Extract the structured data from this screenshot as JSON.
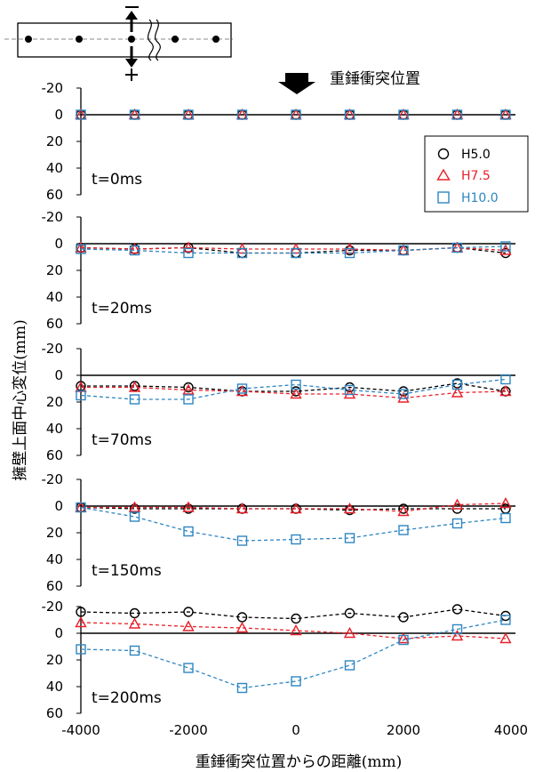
{
  "chart_data": {
    "type": "line",
    "ylabel": "擁壁上面中心変位(mm)",
    "xlabel": "重錘衝突位置からの距離(mm)",
    "annotation": "重錘衝突位置",
    "x": [
      -4000,
      -3000,
      -2000,
      -1000,
      0,
      1000,
      2000,
      3000,
      3900
    ],
    "xlim": [
      -4000,
      4000
    ],
    "x_ticks": [
      "-4000",
      "-2000",
      "0",
      "2000",
      "4000"
    ],
    "ylim": [
      -20,
      60
    ],
    "y_inverted": true,
    "y_ticks": [
      "-20",
      "0",
      "20",
      "40",
      "60"
    ],
    "legend": {
      "placement": "top-right of first panel",
      "entries": [
        {
          "marker": "circle",
          "label": "H5.0",
          "color": "#000000"
        },
        {
          "marker": "triangle",
          "label": "H7.5",
          "color": "#e8202a"
        },
        {
          "marker": "square",
          "label": "H10.0",
          "color": "#2e86c1"
        }
      ]
    },
    "panels": [
      {
        "label": "t=0ms",
        "series": [
          {
            "name": "H5.0",
            "values": [
              0,
              0,
              0,
              0,
              0,
              0,
              0,
              0,
              0
            ]
          },
          {
            "name": "H7.5",
            "values": [
              0,
              0,
              0,
              0,
              0,
              0,
              0,
              0,
              0
            ]
          },
          {
            "name": "H10.0",
            "values": [
              0,
              0,
              0,
              0,
              0,
              0,
              0,
              0,
              0
            ]
          }
        ]
      },
      {
        "label": "t=20ms",
        "series": [
          {
            "name": "H5.0",
            "values": [
              3,
              4,
              3,
              7,
              7,
              5,
              5,
              3,
              7
            ]
          },
          {
            "name": "H7.5",
            "values": [
              3,
              4,
              3,
              4,
              4,
              4,
              5,
              3,
              5
            ]
          },
          {
            "name": "H10.0",
            "values": [
              4,
              5,
              7,
              7,
              7,
              7,
              5,
              3,
              2
            ]
          }
        ]
      },
      {
        "label": "t=70ms",
        "series": [
          {
            "name": "H5.0",
            "values": [
              8,
              8,
              9,
              12,
              12,
              9,
              12,
              6,
              12
            ]
          },
          {
            "name": "H7.5",
            "values": [
              9,
              9,
              11,
              12,
              14,
              14,
              17,
              13,
              12
            ]
          },
          {
            "name": "H10.0",
            "values": [
              15,
              18,
              18,
              10,
              7,
              11,
              14,
              7,
              3
            ]
          }
        ]
      },
      {
        "label": "t=150ms",
        "series": [
          {
            "name": "H5.0",
            "values": [
              1,
              2,
              2,
              2,
              2,
              3,
              2,
              2,
              2
            ]
          },
          {
            "name": "H7.5",
            "values": [
              1,
              1,
              1,
              2,
              2,
              2,
              4,
              -1,
              -2
            ]
          },
          {
            "name": "H10.0",
            "values": [
              1,
              8,
              19,
              26,
              25,
              24,
              18,
              13,
              9
            ]
          }
        ]
      },
      {
        "label": "t=200ms",
        "series": [
          {
            "name": "H5.0",
            "values": [
              -16,
              -15,
              -16,
              -12,
              -11,
              -15,
              -12,
              -18,
              -13
            ]
          },
          {
            "name": "H7.5",
            "values": [
              -8,
              -7,
              -5,
              -4,
              -2,
              0,
              4,
              2,
              4
            ]
          },
          {
            "name": "H10.0",
            "values": [
              12,
              13,
              26,
              41,
              36,
              24,
              5,
              -3,
              -10
            ]
          }
        ]
      }
    ]
  }
}
